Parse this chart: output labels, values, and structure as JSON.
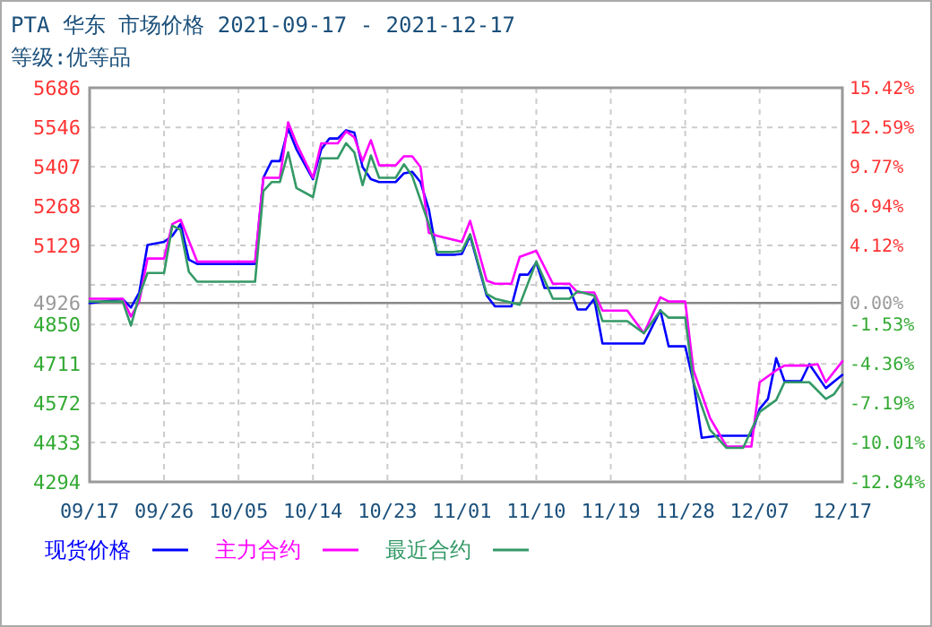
{
  "chart_data": {
    "type": "line",
    "title": "PTA 华东 市场价格 2021-09-17 - 2021-12-17",
    "subtitle": "等级:优等品",
    "xlim": [
      "2021-09-17",
      "2021-12-17"
    ],
    "xticks": [
      {
        "value": "2021-09-17",
        "label": "09/17"
      },
      {
        "value": "2021-09-26",
        "label": "09/26"
      },
      {
        "value": "2021-10-05",
        "label": "10/05"
      },
      {
        "value": "2021-10-14",
        "label": "10/14"
      },
      {
        "value": "2021-10-23",
        "label": "10/23"
      },
      {
        "value": "2021-11-01",
        "label": "11/01"
      },
      {
        "value": "2021-11-10",
        "label": "11/10"
      },
      {
        "value": "2021-11-19",
        "label": "11/19"
      },
      {
        "value": "2021-11-28",
        "label": "11/28"
      },
      {
        "value": "2021-12-07",
        "label": "12/07"
      },
      {
        "value": "2021-12-17",
        "label": "12/17"
      }
    ],
    "ylim": [
      4294,
      5686
    ],
    "yticks": [
      4294,
      4433,
      4572,
      4711,
      4850,
      4926,
      {
        "value": 4990,
        "label": null
      },
      5129,
      5268,
      5407,
      5546,
      5686
    ],
    "y2lim": [
      -12.84,
      15.42
    ],
    "y2ticks": [
      {
        "value": -12.84,
        "label": "-12.84%"
      },
      {
        "value": -10.01,
        "label": "-10.01%"
      },
      {
        "value": -7.19,
        "label": "-7.19%"
      },
      {
        "value": -4.36,
        "label": "-4.36%"
      },
      {
        "value": -1.53,
        "label": "-1.53%"
      },
      {
        "value": 0,
        "label": "0.00%"
      },
      {
        "value": 4.12,
        "label": "4.12%"
      },
      {
        "value": 6.94,
        "label": "6.94%"
      },
      {
        "value": 9.77,
        "label": "9.77%"
      },
      {
        "value": 12.59,
        "label": "12.59%"
      },
      {
        "value": 15.42,
        "label": "15.42%"
      }
    ],
    "ref_lines": [
      {
        "axis": "y",
        "value": 4926,
        "color": "#888888"
      }
    ],
    "grid": true,
    "legend": "bottom",
    "line_style": "solid",
    "marker": "none",
    "series": [
      {
        "name": "现货价格",
        "color": "#0000ff",
        "x": [
          "2021-09-17",
          "2021-09-21",
          "2021-09-22",
          "2021-09-23",
          "2021-09-24",
          "2021-09-26",
          "2021-09-27",
          "2021-09-28",
          "2021-09-29",
          "2021-09-30",
          "2021-10-07",
          "2021-10-08",
          "2021-10-09",
          "2021-10-10",
          "2021-10-11",
          "2021-10-12",
          "2021-10-14",
          "2021-10-15",
          "2021-10-16",
          "2021-10-17",
          "2021-10-18",
          "2021-10-19",
          "2021-10-20",
          "2021-10-21",
          "2021-10-22",
          "2021-10-24",
          "2021-10-25",
          "2021-10-26",
          "2021-10-27",
          "2021-10-28",
          "2021-10-29",
          "2021-10-31",
          "2021-11-01",
          "2021-11-02",
          "2021-11-04",
          "2021-11-05",
          "2021-11-07",
          "2021-11-08",
          "2021-11-09",
          "2021-11-10",
          "2021-11-11",
          "2021-11-14",
          "2021-11-15",
          "2021-11-16",
          "2021-11-17",
          "2021-11-18",
          "2021-11-23",
          "2021-11-25",
          "2021-11-26",
          "2021-11-28",
          "2021-11-29",
          "2021-11-30",
          "2021-12-02",
          "2021-12-06",
          "2021-12-07",
          "2021-12-08",
          "2021-12-09",
          "2021-12-10",
          "2021-12-12",
          "2021-12-13",
          "2021-12-15",
          "2021-12-17"
        ],
        "values": [
          4925,
          4940,
          4910,
          4963,
          5131,
          5142,
          5163,
          5205,
          5079,
          5064,
          5064,
          5368,
          5427,
          5427,
          5542,
          5469,
          5363,
          5469,
          5507,
          5507,
          5536,
          5528,
          5406,
          5363,
          5353,
          5353,
          5384,
          5389,
          5353,
          5258,
          5096,
          5096,
          5099,
          5163,
          4952,
          4914,
          4914,
          5026,
          5026,
          5068,
          4979,
          4979,
          4903,
          4903,
          4941,
          4783,
          4783,
          4900,
          4773,
          4773,
          4646,
          4450,
          4457,
          4457,
          4552,
          4587,
          4731,
          4650,
          4650,
          4710,
          4625,
          4672
        ]
      },
      {
        "name": "主力合约",
        "color": "#ff00ff",
        "x": [
          "2021-09-17",
          "2021-09-21",
          "2021-09-22",
          "2021-09-23",
          "2021-09-24",
          "2021-09-26",
          "2021-09-27",
          "2021-09-28",
          "2021-09-30",
          "2021-10-07",
          "2021-10-08",
          "2021-10-10",
          "2021-10-11",
          "2021-10-12",
          "2021-10-14",
          "2021-10-15",
          "2021-10-17",
          "2021-10-18",
          "2021-10-19",
          "2021-10-20",
          "2021-10-21",
          "2021-10-22",
          "2021-10-24",
          "2021-10-25",
          "2021-10-26",
          "2021-10-27",
          "2021-10-28",
          "2021-10-29",
          "2021-10-30",
          "2021-11-01",
          "2021-11-02",
          "2021-11-04",
          "2021-11-05",
          "2021-11-07",
          "2021-11-08",
          "2021-11-10",
          "2021-11-12",
          "2021-11-14",
          "2021-11-15",
          "2021-11-17",
          "2021-11-18",
          "2021-11-21",
          "2021-11-23",
          "2021-11-25",
          "2021-11-26",
          "2021-11-28",
          "2021-11-29",
          "2021-12-01",
          "2021-12-03",
          "2021-12-06",
          "2021-12-07",
          "2021-12-09",
          "2021-12-10",
          "2021-12-13",
          "2021-12-14",
          "2021-12-15",
          "2021-12-17"
        ],
        "values": [
          4941,
          4941,
          4878,
          4931,
          5083,
          5083,
          5205,
          5220,
          5072,
          5072,
          5368,
          5368,
          5564,
          5490,
          5368,
          5490,
          5490,
          5532,
          5511,
          5427,
          5501,
          5412,
          5412,
          5444,
          5444,
          5406,
          5174,
          5163,
          5156,
          5142,
          5216,
          5005,
          4994,
          4994,
          5089,
          5110,
          4994,
          4994,
          4963,
          4963,
          4899,
          4899,
          4819,
          4946,
          4931,
          4931,
          4688,
          4520,
          4419,
          4419,
          4646,
          4688,
          4705,
          4705,
          4710,
          4646,
          4720
        ]
      },
      {
        "name": "最近合约",
        "color": "#339966",
        "x": [
          "2021-09-17",
          "2021-09-21",
          "2021-09-22",
          "2021-09-23",
          "2021-09-24",
          "2021-09-26",
          "2021-09-27",
          "2021-09-28",
          "2021-09-29",
          "2021-09-30",
          "2021-10-07",
          "2021-10-08",
          "2021-10-09",
          "2021-10-10",
          "2021-10-11",
          "2021-10-12",
          "2021-10-14",
          "2021-10-15",
          "2021-10-17",
          "2021-10-18",
          "2021-10-19",
          "2021-10-20",
          "2021-10-21",
          "2021-10-22",
          "2021-10-24",
          "2021-10-25",
          "2021-10-26",
          "2021-10-28",
          "2021-10-29",
          "2021-10-31",
          "2021-11-01",
          "2021-11-02",
          "2021-11-04",
          "2021-11-05",
          "2021-11-08",
          "2021-11-10",
          "2021-11-12",
          "2021-11-14",
          "2021-11-15",
          "2021-11-17",
          "2021-11-18",
          "2021-11-21",
          "2021-11-23",
          "2021-11-25",
          "2021-11-26",
          "2021-11-28",
          "2021-11-29",
          "2021-12-01",
          "2021-12-03",
          "2021-12-05",
          "2021-12-07",
          "2021-12-09",
          "2021-12-10",
          "2021-12-13",
          "2021-12-15",
          "2021-12-16",
          "2021-12-17"
        ],
        "values": [
          4931,
          4931,
          4846,
          4952,
          5032,
          5032,
          5199,
          5184,
          5036,
          5001,
          5001,
          5321,
          5353,
          5353,
          5458,
          5332,
          5300,
          5437,
          5437,
          5490,
          5458,
          5342,
          5447,
          5368,
          5368,
          5416,
          5374,
          5205,
          5106,
          5106,
          5110,
          5169,
          4958,
          4941,
          4920,
          5072,
          4941,
          4941,
          4967,
          4952,
          4862,
          4862,
          4819,
          4899,
          4874,
          4874,
          4646,
          4478,
          4414,
          4414,
          4541,
          4583,
          4646,
          4646,
          4587,
          4604,
          4646
        ]
      }
    ]
  }
}
